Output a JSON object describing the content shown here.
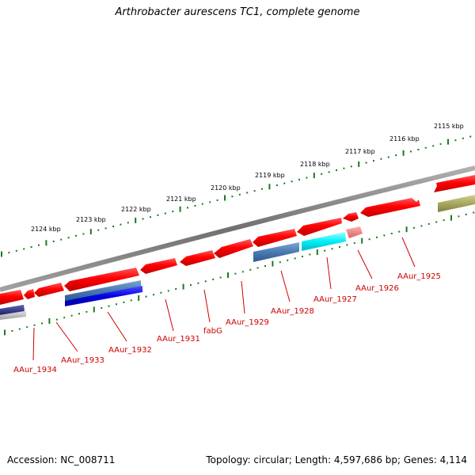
{
  "title": "Arthrobacter aurescens TC1, complete genome",
  "accession": "Accession: NC_008711",
  "summary": "Topology: circular; Length: 4,597,686 bp; Genes: 4,114",
  "scale_labels": [
    "2115 kbp",
    "2116 kbp",
    "2117 kbp",
    "2118 kbp",
    "2119 kbp",
    "2120 kbp",
    "2121 kbp",
    "2122 kbp",
    "2123 kbp",
    "2124 kbp"
  ],
  "gene_labels": [
    "AAur_1925",
    "AAur_1926",
    "AAur_1927",
    "AAur_1928",
    "AAur_1929",
    "fabG",
    "AAur_1931",
    "AAur_1932",
    "AAur_1933",
    "AAur_1934"
  ],
  "colors": {
    "backbone": "#808080",
    "scale_ticks": "#1a7a1a",
    "gene_red": "#ff0000",
    "gene_pink": "#f08080",
    "gene_cyan": "#00e5f0",
    "gene_steelblue": "#4a7ab0",
    "gene_blue": "#1010e0",
    "gene_olive": "#a8a860",
    "gene_navy": "#2a2a80",
    "label_red": "#cc0000"
  }
}
